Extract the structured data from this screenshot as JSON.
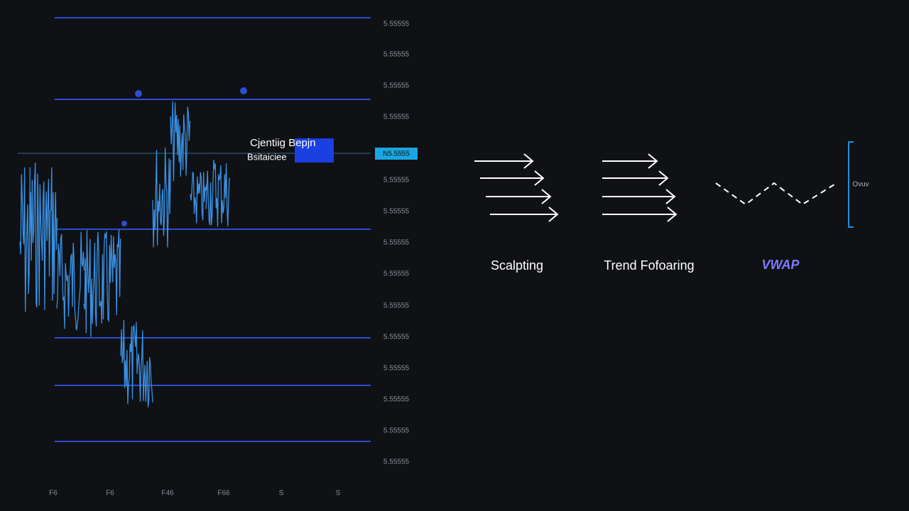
{
  "price_axis": {
    "labels": [
      "5.55555",
      "5.55555",
      "5.55555",
      "5.55555",
      "5.55555",
      "5.55555",
      "5.55555",
      "5.55555",
      "5.55555",
      "5.55555",
      "5.55555",
      "5.55555",
      "5.55555",
      "5.55555"
    ],
    "current": "N5.5555"
  },
  "time_axis": {
    "labels": [
      "F6",
      "F6",
      "F46",
      "F66",
      "S",
      "S"
    ]
  },
  "annotation": {
    "title": "Cjentiig Bepjn",
    "subtitle": "Bsitaiciee"
  },
  "strategies": [
    {
      "label": "Scalpting"
    },
    {
      "label": "Trend Fofoaring"
    },
    {
      "label": "VWAP"
    }
  ],
  "bracket_label": "Ovuv"
}
